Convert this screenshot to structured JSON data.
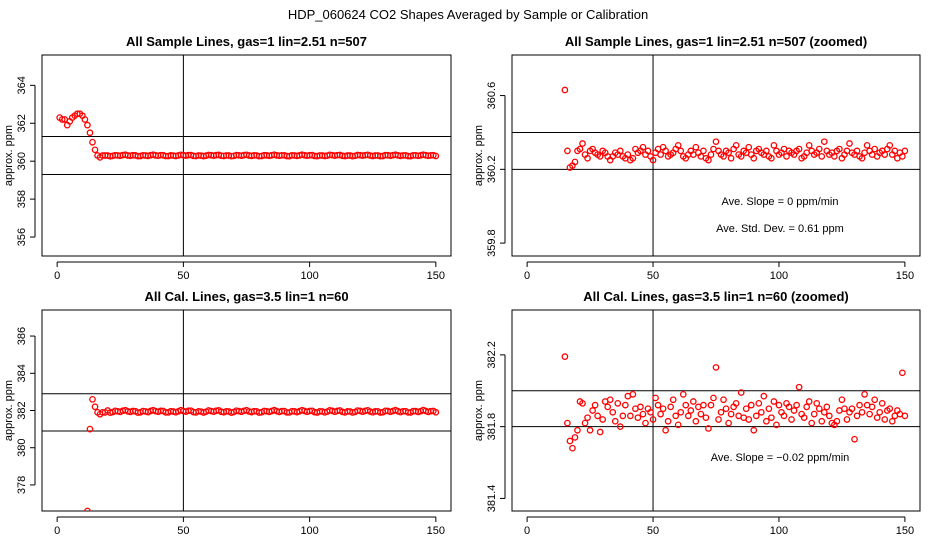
{
  "figure": {
    "title": "HDP_060624  CO2 Shapes Averaged by Sample or Calibration"
  },
  "chart_data": [
    {
      "type": "scatter",
      "title": "All Sample Lines, gas=1 lin=2.51 n=507",
      "xlabel": "",
      "ylabel": "approx. ppm",
      "xlim": [
        -6,
        156
      ],
      "ylim": [
        355,
        365.6
      ],
      "xticks": [
        0,
        50,
        100,
        150
      ],
      "yticks": [
        356,
        358,
        360,
        362,
        364
      ],
      "grid": false,
      "hlines": [
        361.3,
        359.3
      ],
      "vlines": [
        50
      ],
      "annotations": [],
      "series": [
        {
          "marker": "open-circle",
          "color": "#ff0000",
          "x": [
            1,
            2,
            3,
            4,
            5,
            6,
            7,
            8,
            9,
            10,
            11,
            12,
            13,
            14,
            15,
            16,
            17,
            18,
            19,
            20
          ],
          "y": [
            362.3,
            362.2,
            362.2,
            361.9,
            362.1,
            362.3,
            362.4,
            362.5,
            362.5,
            362.4,
            362.2,
            361.9,
            361.5,
            361.0,
            360.6,
            360.3,
            360.2,
            360.3,
            360.3,
            360.3
          ],
          "flat_from": 21,
          "flat_to": 150,
          "flat_value": 360.3,
          "flat_jitter": 0.04
        }
      ]
    },
    {
      "type": "scatter",
      "title": "All Sample Lines, gas=1 lin=2.51 n=507 (zoomed)",
      "xlabel": "",
      "ylabel": "approx. ppm",
      "xlim": [
        -6,
        156
      ],
      "ylim": [
        359.73,
        360.82
      ],
      "xticks": [
        0,
        50,
        100,
        150
      ],
      "yticks": [
        359.8,
        360.2,
        360.6
      ],
      "grid": false,
      "hlines": [
        360.4,
        360.2
      ],
      "vlines": [
        50
      ],
      "annotations": [
        "Ave. Slope =  0  ppm/min",
        "Ave. Std. Dev. =  0.61  ppm"
      ],
      "series": [
        {
          "marker": "open-circle",
          "color": "#ff0000",
          "x": [
            15,
            16,
            17,
            18,
            19,
            20,
            21,
            22,
            23,
            24,
            25,
            26,
            27,
            28,
            29,
            30,
            31,
            32,
            33,
            34,
            35,
            36,
            37,
            38,
            39,
            40,
            41,
            42,
            43,
            44,
            45,
            46,
            47,
            48,
            49,
            50,
            51,
            52,
            53,
            54,
            55,
            56,
            57,
            58,
            59,
            60,
            61,
            62,
            63,
            64,
            65,
            66,
            67,
            68,
            69,
            70,
            71,
            72,
            73,
            74,
            75,
            76,
            77,
            78,
            79,
            80,
            81,
            82,
            83,
            84,
            85,
            86,
            87,
            88,
            89,
            90,
            91,
            92,
            93,
            94,
            95,
            96,
            97,
            98,
            99,
            100,
            101,
            102,
            103,
            104,
            105,
            106,
            107,
            108,
            109,
            110,
            111,
            112,
            113,
            114,
            115,
            116,
            117,
            118,
            119,
            120,
            121,
            122,
            123,
            124,
            125,
            126,
            127,
            128,
            129,
            130,
            131,
            132,
            133,
            134,
            135,
            136,
            137,
            138,
            139,
            140,
            141,
            142,
            143,
            144,
            145,
            146,
            147,
            148,
            149,
            150
          ],
          "y": [
            360.63,
            360.3,
            360.21,
            360.22,
            360.24,
            360.3,
            360.31,
            360.34,
            360.28,
            360.26,
            360.3,
            360.31,
            360.29,
            360.28,
            360.27,
            360.3,
            360.29,
            360.27,
            360.25,
            360.27,
            360.29,
            360.28,
            360.3,
            360.27,
            360.26,
            360.28,
            360.25,
            360.26,
            360.31,
            360.29,
            360.3,
            360.32,
            360.28,
            360.3,
            360.27,
            360.25,
            360.29,
            360.31,
            360.28,
            360.32,
            360.3,
            360.27,
            360.28,
            360.29,
            360.31,
            360.33,
            360.3,
            360.27,
            360.26,
            360.28,
            360.3,
            360.28,
            360.32,
            360.29,
            360.27,
            360.3,
            360.26,
            360.25,
            360.28,
            360.31,
            360.35,
            360.3,
            360.28,
            360.27,
            360.3,
            360.29,
            360.26,
            360.31,
            360.33,
            360.28,
            360.27,
            360.3,
            360.29,
            360.32,
            360.28,
            360.26,
            360.3,
            360.31,
            360.29,
            360.28,
            360.3,
            360.27,
            360.26,
            360.33,
            360.3,
            360.28,
            360.29,
            360.31,
            360.27,
            360.3,
            360.29,
            360.28,
            360.3,
            360.31,
            360.26,
            360.27,
            360.29,
            360.33,
            360.3,
            360.28,
            360.29,
            360.31,
            360.27,
            360.35,
            360.3,
            360.28,
            360.29,
            360.27,
            360.3,
            360.31,
            360.26,
            360.28,
            360.3,
            360.34,
            360.29,
            360.28,
            360.3,
            360.27,
            360.26,
            360.29,
            360.33,
            360.3,
            360.28,
            360.31,
            360.27,
            360.29,
            360.3,
            360.28,
            360.31,
            360.33,
            360.28,
            360.3,
            360.26,
            360.29,
            360.27,
            360.3
          ]
        }
      ]
    },
    {
      "type": "scatter",
      "title": "All Cal. Lines, gas=3.5 lin=1 n=60",
      "xlabel": "",
      "ylabel": "approx. ppm",
      "xlim": [
        -6,
        156
      ],
      "ylim": [
        376.6,
        387.4
      ],
      "xticks": [
        0,
        50,
        100,
        150
      ],
      "yticks": [
        378,
        380,
        382,
        384,
        386
      ],
      "grid": false,
      "hlines": [
        382.9,
        380.9
      ],
      "vlines": [
        50
      ],
      "annotations": [],
      "series": [
        {
          "marker": "open-circle",
          "color": "#ff0000",
          "x": [
            12,
            13,
            14,
            15,
            16,
            17,
            18,
            19,
            20
          ],
          "y": [
            376.6,
            381.0,
            382.6,
            382.2,
            381.9,
            381.8,
            381.9,
            381.9,
            382.0
          ],
          "flat_from": 21,
          "flat_to": 150,
          "flat_value": 381.95,
          "flat_jitter": 0.07
        }
      ]
    },
    {
      "type": "scatter",
      "title": "All Cal. Lines, gas=3.5 lin=1 n=60 (zoomed)",
      "xlabel": "",
      "ylabel": "approx. ppm",
      "xlim": [
        -6,
        156
      ],
      "ylim": [
        381.33,
        382.45
      ],
      "xticks": [
        0,
        50,
        100,
        150
      ],
      "yticks": [
        381.4,
        381.8,
        382.2
      ],
      "grid": false,
      "hlines": [
        382.0,
        381.8
      ],
      "vlines": [
        50
      ],
      "annotations": [
        "Ave. Slope =  −0.02  ppm/min"
      ],
      "series": [
        {
          "marker": "open-circle",
          "color": "#ff0000",
          "x": [
            15,
            16,
            17,
            18,
            19,
            20,
            21,
            22,
            23,
            24,
            25,
            26,
            27,
            28,
            29,
            30,
            31,
            32,
            33,
            34,
            35,
            36,
            37,
            38,
            39,
            40,
            41,
            42,
            43,
            44,
            45,
            46,
            47,
            48,
            49,
            50,
            51,
            52,
            53,
            54,
            55,
            56,
            57,
            58,
            59,
            60,
            61,
            62,
            63,
            64,
            65,
            66,
            67,
            68,
            69,
            70,
            71,
            72,
            73,
            74,
            75,
            76,
            77,
            78,
            79,
            80,
            81,
            82,
            83,
            84,
            85,
            86,
            87,
            88,
            89,
            90,
            91,
            92,
            93,
            94,
            95,
            96,
            97,
            98,
            99,
            100,
            101,
            102,
            103,
            104,
            105,
            106,
            107,
            108,
            109,
            110,
            111,
            112,
            113,
            114,
            115,
            116,
            117,
            118,
            119,
            120,
            121,
            122,
            123,
            124,
            125,
            126,
            127,
            128,
            129,
            130,
            131,
            132,
            133,
            134,
            135,
            136,
            137,
            138,
            139,
            140,
            141,
            142,
            143,
            144,
            145,
            146,
            147,
            148,
            149,
            150
          ],
          "y": [
            382.19,
            381.82,
            381.72,
            381.68,
            381.74,
            381.78,
            381.94,
            381.93,
            381.82,
            381.85,
            381.78,
            381.89,
            381.92,
            381.86,
            381.77,
            381.84,
            381.94,
            381.91,
            381.95,
            381.88,
            381.83,
            381.93,
            381.8,
            381.86,
            381.92,
            381.97,
            381.86,
            381.98,
            381.9,
            381.85,
            381.91,
            381.87,
            381.82,
            381.9,
            381.88,
            381.84,
            381.96,
            381.92,
            381.87,
            381.9,
            381.78,
            381.83,
            381.91,
            381.95,
            381.86,
            381.81,
            381.88,
            381.98,
            381.92,
            381.86,
            381.89,
            381.94,
            381.83,
            381.91,
            381.87,
            381.92,
            381.85,
            381.79,
            381.92,
            381.96,
            382.13,
            381.84,
            381.88,
            381.95,
            381.9,
            381.82,
            381.87,
            381.91,
            381.93,
            381.86,
            381.99,
            381.85,
            381.9,
            381.84,
            381.92,
            381.78,
            381.86,
            381.93,
            381.88,
            381.97,
            381.83,
            381.9,
            381.85,
            381.94,
            381.81,
            381.92,
            381.88,
            381.86,
            381.93,
            381.91,
            381.84,
            381.89,
            381.92,
            382.02,
            381.87,
            381.85,
            381.91,
            381.94,
            381.82,
            381.87,
            381.93,
            381.9,
            381.83,
            381.88,
            381.91,
            381.86,
            381.82,
            381.81,
            381.83,
            381.89,
            381.95,
            381.9,
            381.84,
            381.88,
            381.9,
            381.73,
            381.86,
            381.92,
            381.88,
            381.98,
            381.92,
            381.87,
            381.91,
            381.95,
            381.85,
            381.88,
            381.93,
            381.84,
            381.89,
            381.9,
            381.83,
            381.86,
            381.89,
            381.87,
            382.1,
            381.86
          ]
        }
      ]
    }
  ]
}
